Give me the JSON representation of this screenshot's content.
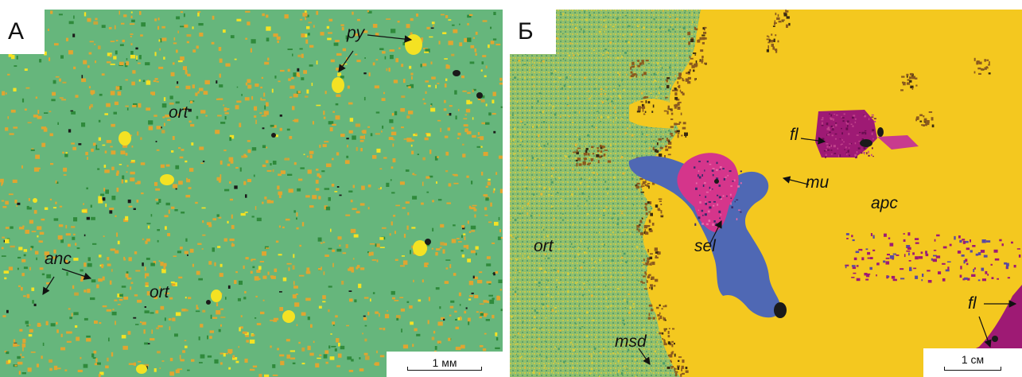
{
  "panel_a": {
    "letter": "А",
    "labels": {
      "py": "py",
      "ort_upper": "ort",
      "ort_lower": "ort",
      "anc": "anc"
    },
    "scale_bar": "1 мм"
  },
  "panel_b": {
    "letter": "Б",
    "labels": {
      "fl_upper": "fl",
      "fl_lower": "fl",
      "mu": "mu",
      "apc": "apc",
      "ort": "ort",
      "sel": "sel",
      "msd": "msd"
    },
    "scale_bar": "1 см"
  },
  "colors": {
    "ort": "#66b67c",
    "ort_dark": "#2f8a3b",
    "grain_orange": "#e0a531",
    "grain_yellow": "#f4e223",
    "apc": "#f4c81f",
    "mu": "#4f68b4",
    "fl": "#9e1a74",
    "sel": "#d5358b",
    "msd": "#8b5a1e",
    "black": "#1a1a1a"
  }
}
